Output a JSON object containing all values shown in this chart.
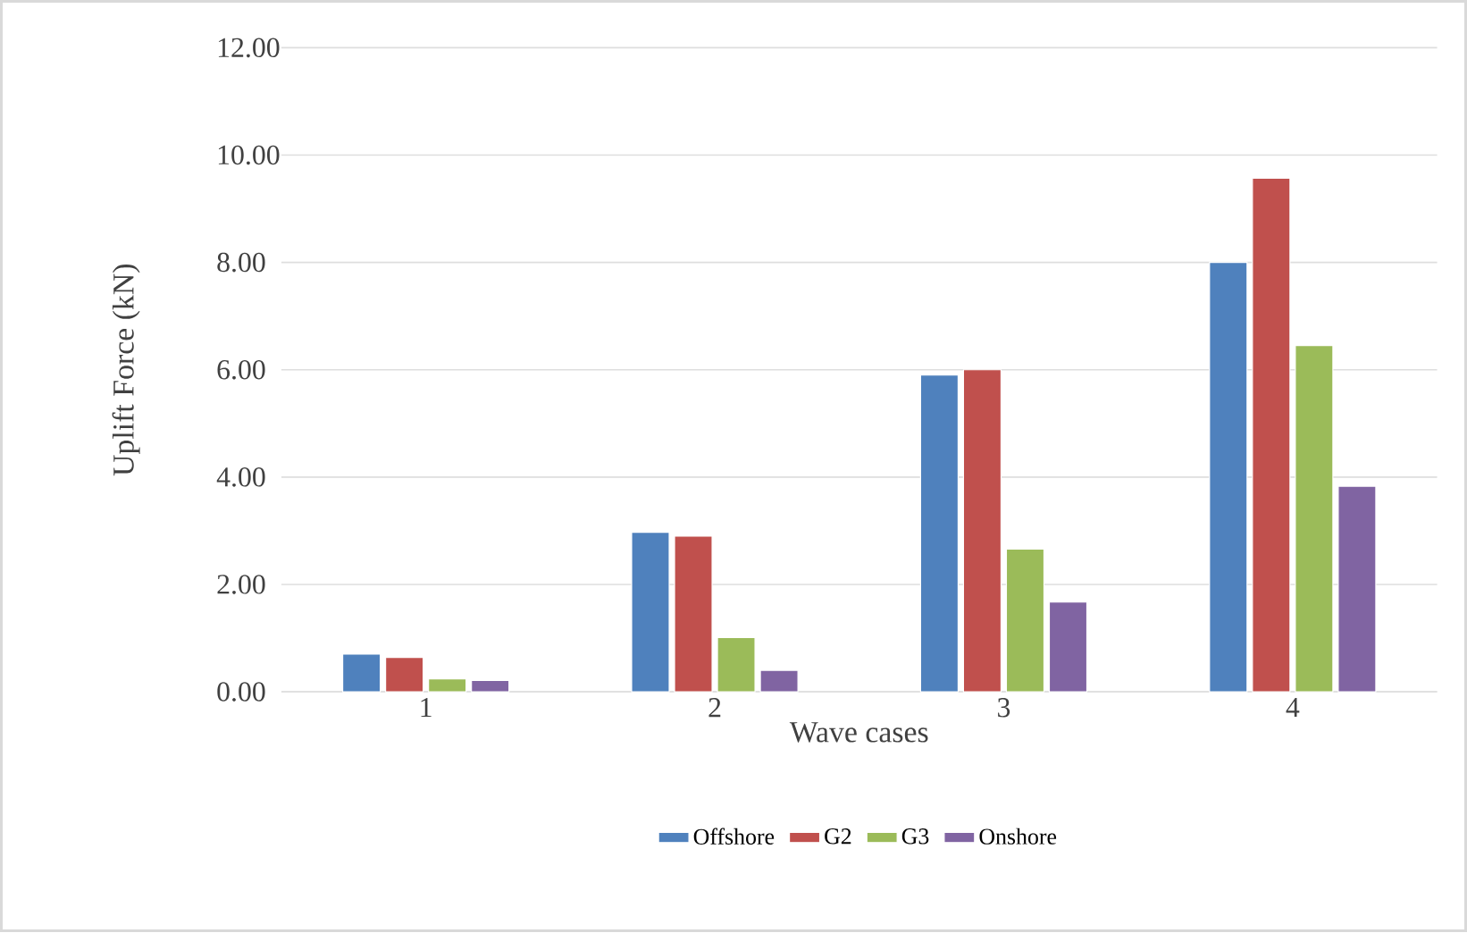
{
  "chart_data": {
    "type": "bar",
    "xlabel": "Wave  cases",
    "ylabel": "Uplift Force (kN)",
    "categories": [
      "1",
      "2",
      "3",
      "4"
    ],
    "series": [
      {
        "name": "Offshore",
        "color": "#4f81bd",
        "values": [
          0.7,
          2.97,
          5.9,
          8.0
        ]
      },
      {
        "name": "G2",
        "color": "#c0504d",
        "values": [
          0.64,
          2.9,
          6.0,
          9.57
        ]
      },
      {
        "name": "G3",
        "color": "#9bbb59",
        "values": [
          0.24,
          1.01,
          2.66,
          6.45
        ]
      },
      {
        "name": "Onshore",
        "color": "#8064a2",
        "values": [
          0.21,
          0.4,
          1.67,
          3.83
        ]
      }
    ],
    "ylim": [
      0,
      12
    ],
    "yticks": [
      {
        "value": 0,
        "label": "0.00"
      },
      {
        "value": 2,
        "label": "2.00"
      },
      {
        "value": 4,
        "label": "4.00"
      },
      {
        "value": 6,
        "label": "6.00"
      },
      {
        "value": 8,
        "label": "8.00"
      },
      {
        "value": 10,
        "label": "10.00"
      },
      {
        "value": 12,
        "label": "12.00"
      }
    ],
    "grid": "y",
    "legend": "bottom"
  }
}
